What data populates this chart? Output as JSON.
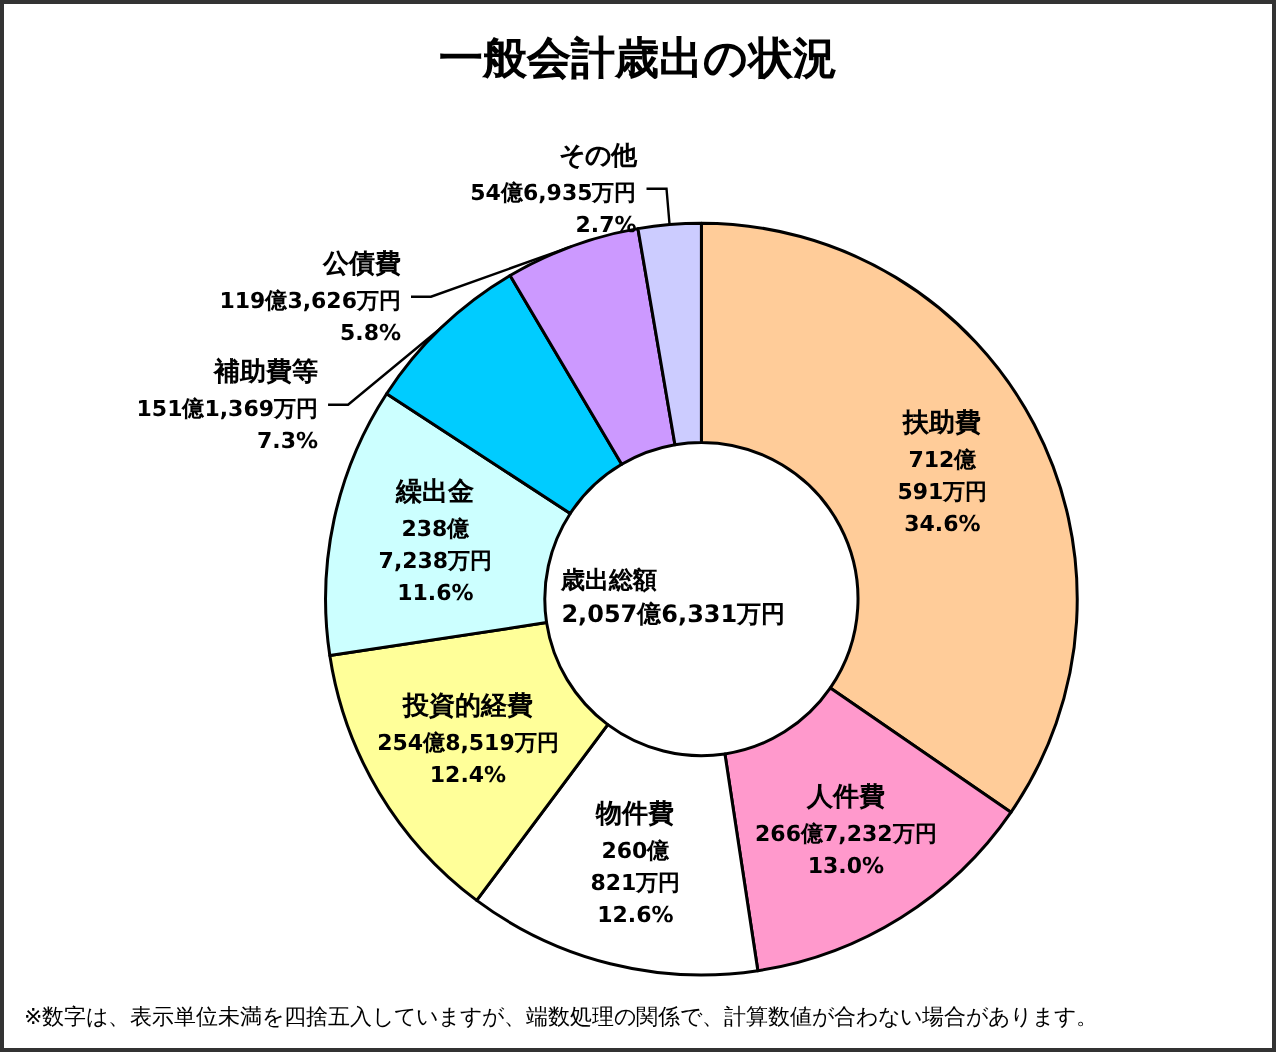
{
  "chart_data": {
    "type": "donut",
    "title": "一般会計歳出の状況",
    "categories": [
      "扶助費",
      "人件費",
      "物件費",
      "投資的経費",
      "繰出金",
      "補助費等",
      "公債費",
      "その他"
    ],
    "values": [
      34.6,
      13.0,
      12.6,
      12.4,
      11.6,
      7.3,
      5.8,
      2.7
    ],
    "colors": [
      "#ffcc99",
      "#ff99cc",
      "#ffffff",
      "#ffff99",
      "#ccffff",
      "#00ccff",
      "#cc99ff",
      "#ccccff"
    ],
    "value_labels": [
      "712億\n591万円\n34.6%",
      "266億7,232万円\n13.0%",
      "260億\n821万円\n12.6%",
      "254億8,519万円\n12.4%",
      "238億\n7,238万円\n11.6%",
      "151億1,369万円\n7.3%",
      "119億3,626万円\n5.8%",
      "54億6,935万円\n2.7%"
    ],
    "annotations": [
      "歳出総額\n2,057億6,331万円",
      "※数字は、表示単位未満を四捨五入していますが、端数処理の関係で、計算数値が合わない場合があります。"
    ]
  }
}
